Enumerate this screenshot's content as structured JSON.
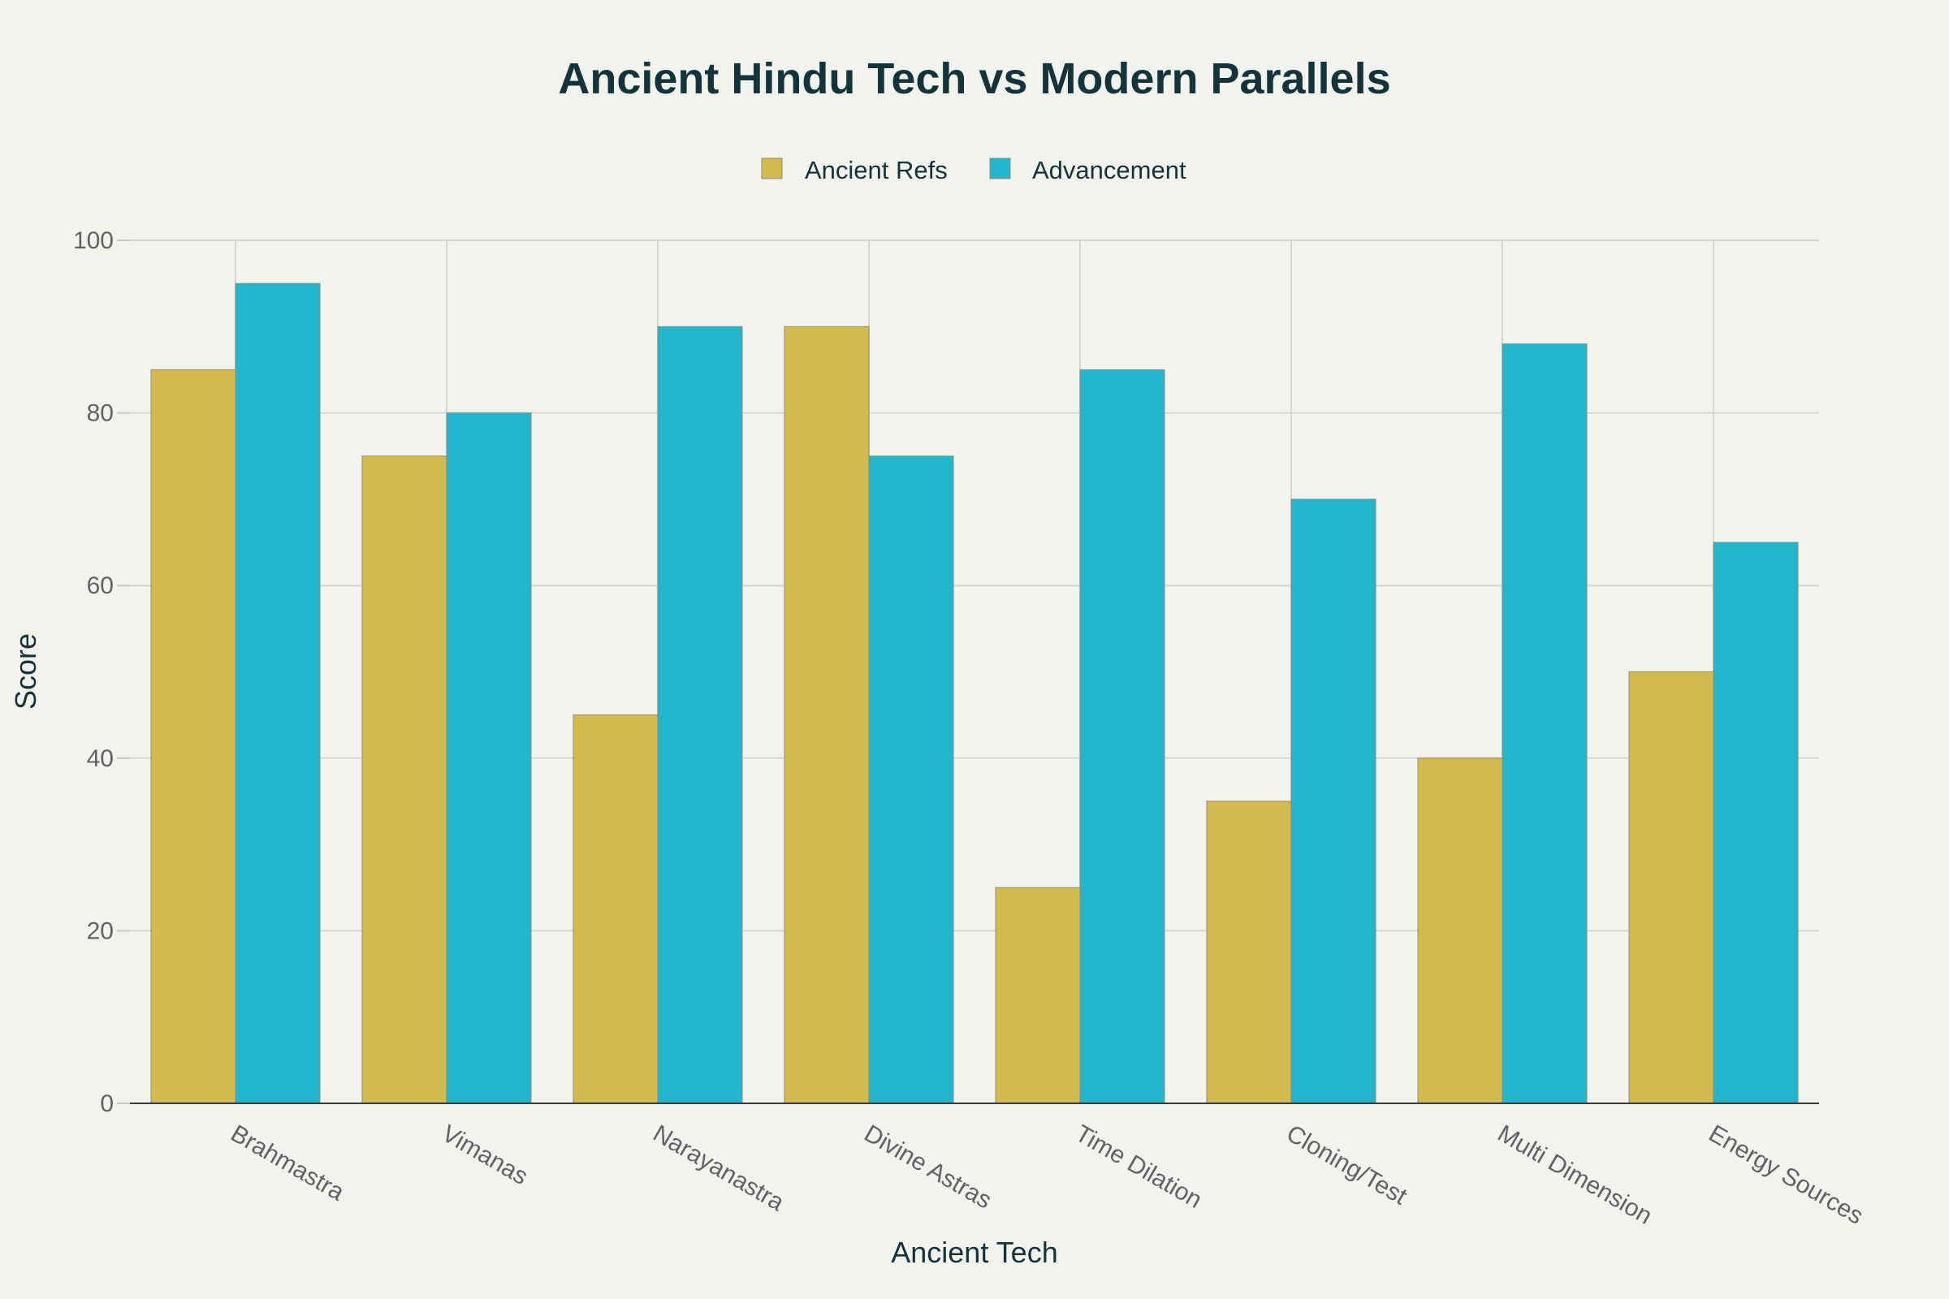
{
  "chart_data": {
    "type": "bar",
    "title": "Ancient Hindu Tech vs Modern Parallels",
    "xlabel": "Ancient Tech",
    "ylabel": "Score",
    "ylim": [
      0,
      100
    ],
    "yticks": [
      0,
      20,
      40,
      60,
      80,
      100
    ],
    "grid": true,
    "legend_position": "top-center",
    "categories": [
      "Brahmastra",
      "Vimanas",
      "Narayanastra",
      "Divine Astras",
      "Time Dilation",
      "Cloning/Test",
      "Multi Dimension",
      "Energy Sources"
    ],
    "series": [
      {
        "name": "Ancient Refs",
        "color": "#d2ba4c",
        "values": [
          85,
          75,
          45,
          90,
          25,
          35,
          40,
          50
        ]
      },
      {
        "name": "Advancement",
        "color": "#21b6cb",
        "values": [
          95,
          80,
          90,
          75,
          85,
          70,
          88,
          65
        ]
      }
    ]
  }
}
